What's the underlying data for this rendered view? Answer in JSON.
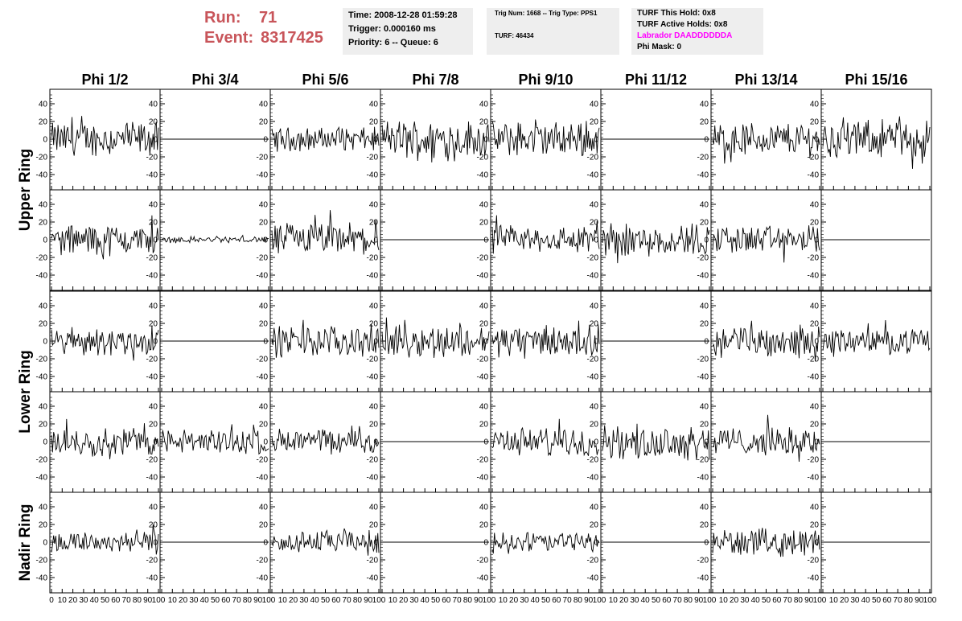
{
  "header": {
    "run_label": "Run:",
    "run_value": "71",
    "event_label": "Event:",
    "event_value": "8317425",
    "time": "Time: 2008-12-28 01:59:28",
    "trigger": "Trigger: 0.000160 ms",
    "priority": "Priority: 6 -- Queue: 6",
    "trig_line": "Trig Num: 1668 -- Trig Type: PPS1",
    "turf_line": "TURF: 46434",
    "turf_hold": "TURF This Hold: 0x8",
    "turf_active": "TURF Active Holds: 0x8",
    "labrador": "Labrador DAADDDDDDA",
    "phi_mask": "Phi Mask: 0",
    "run_color": "#c8555a",
    "labrador_color": "#ff00ff"
  },
  "chart_data": {
    "type": "line",
    "columns": [
      "Phi 1/2",
      "Phi 3/4",
      "Phi 5/6",
      "Phi 7/8",
      "Phi 9/10",
      "Phi 11/12",
      "Phi 13/14",
      "Phi 15/16"
    ],
    "row_groups": [
      {
        "label": "Upper Ring",
        "rows": [
          0,
          1
        ]
      },
      {
        "label": "Lower Ring",
        "rows": [
          2,
          3
        ]
      },
      {
        "label": "Nadir Ring",
        "rows": [
          4
        ]
      }
    ],
    "xlim": [
      0,
      100
    ],
    "ylim": [
      -50,
      50
    ],
    "y_ticks": [
      -40,
      -20,
      0,
      20,
      40
    ],
    "x_tick_labels": [
      "0",
      "10",
      "20",
      "30",
      "40",
      "50",
      "60",
      "70",
      "80",
      "90",
      "100"
    ],
    "samples": 100,
    "trace_color": "#000000",
    "note_amplitude": "peak-to-peak amplitude estimate per panel in data units; 0 = flat trace",
    "amplitudes": [
      [
        22,
        0,
        15,
        25,
        22,
        0,
        22,
        24
      ],
      [
        20,
        4,
        22,
        0,
        18,
        22,
        18,
        0
      ],
      [
        18,
        0,
        20,
        20,
        20,
        0,
        20,
        15
      ],
      [
        18,
        16,
        16,
        0,
        18,
        22,
        18,
        0
      ],
      [
        15,
        0,
        15,
        0,
        13,
        0,
        17,
        0
      ]
    ]
  }
}
